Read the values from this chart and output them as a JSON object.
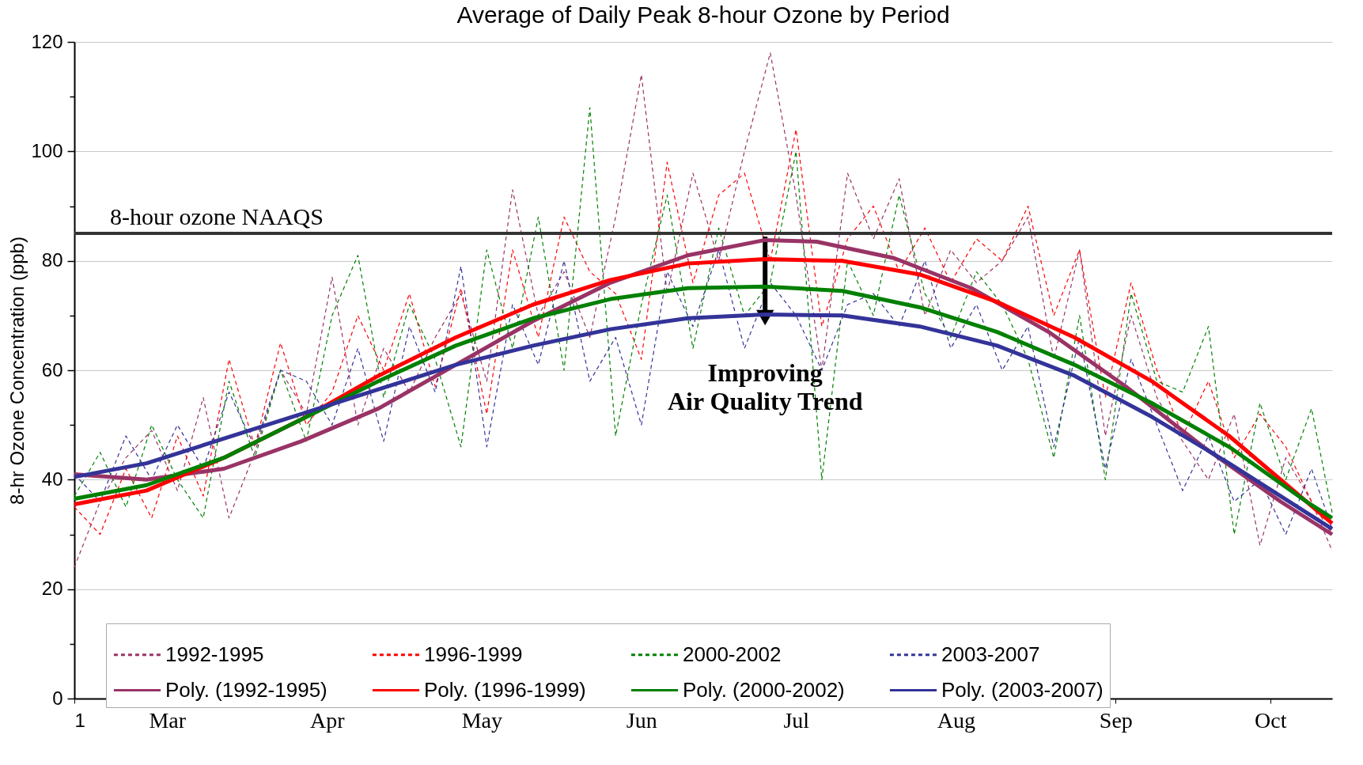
{
  "chart_data": {
    "type": "line",
    "title": "Average of Daily Peak 8-hour Ozone by Period",
    "ylabel": "8-hr Ozone Concentration (ppb)",
    "x": [
      "--02-25",
      "--03-02",
      "--03-07",
      "--03-12",
      "--03-17",
      "--03-22",
      "--03-27",
      "--04-01",
      "--04-06",
      "--04-11",
      "--04-16",
      "--04-21",
      "--04-26",
      "--05-01",
      "--05-06",
      "--05-11",
      "--05-16",
      "--05-21",
      "--05-26",
      "--05-31",
      "--06-05",
      "--06-10",
      "--06-15",
      "--06-20",
      "--06-25",
      "--06-30",
      "--07-05",
      "--07-10",
      "--07-15",
      "--07-20",
      "--07-25",
      "--07-30",
      "--08-04",
      "--08-09",
      "--08-14",
      "--08-19",
      "--08-24",
      "--08-29",
      "--09-03",
      "--09-08",
      "--09-13",
      "--09-18",
      "--09-23",
      "--09-28",
      "--10-03",
      "--10-08",
      "--10-13",
      "--10-18",
      "--10-23",
      "--10-27"
    ],
    "series": [
      {
        "name": "1992-1995",
        "color": "#993366",
        "line_style": "dashed",
        "values": [
          24,
          36,
          44,
          49,
          38,
          55,
          33,
          45,
          60,
          52,
          77,
          50,
          64,
          56,
          66,
          74,
          58,
          93,
          70,
          78,
          66,
          88,
          114,
          74,
          96,
          80,
          100,
          118,
          92,
          60,
          96,
          84,
          95,
          70,
          82,
          76,
          80,
          88,
          62,
          82,
          48,
          70,
          55,
          47,
          40,
          52,
          28,
          44,
          36,
          27
        ]
      },
      {
        "name": "1996-1999",
        "color": "#ff0000",
        "line_style": "dashed",
        "values": [
          35,
          30,
          42,
          33,
          48,
          37,
          62,
          46,
          65,
          50,
          56,
          70,
          60,
          74,
          57,
          75,
          52,
          82,
          66,
          88,
          78,
          74,
          62,
          98,
          76,
          92,
          96,
          80,
          104,
          68,
          84,
          90,
          78,
          86,
          76,
          84,
          80,
          90,
          70,
          82,
          55,
          76,
          60,
          48,
          58,
          44,
          52,
          46,
          36,
          30
        ]
      },
      {
        "name": "2000-2002",
        "color": "#008000",
        "line_style": "dashed",
        "values": [
          37,
          45,
          35,
          50,
          40,
          33,
          58,
          44,
          60,
          47,
          70,
          81,
          55,
          72,
          62,
          46,
          82,
          64,
          88,
          60,
          108,
          48,
          72,
          92,
          64,
          86,
          70,
          76,
          100,
          40,
          80,
          70,
          92,
          74,
          66,
          78,
          72,
          62,
          44,
          70,
          40,
          74,
          58,
          56,
          68,
          30,
          54,
          40,
          53,
          34
        ]
      },
      {
        "name": "2003-2007",
        "color": "#333399",
        "line_style": "dashed",
        "values": [
          41,
          36,
          48,
          40,
          50,
          42,
          56,
          46,
          60,
          58,
          50,
          64,
          47,
          68,
          56,
          79,
          46,
          72,
          61,
          80,
          58,
          66,
          50,
          78,
          68,
          82,
          64,
          76,
          70,
          60,
          72,
          74,
          68,
          80,
          64,
          72,
          60,
          68,
          46,
          66,
          42,
          62,
          50,
          38,
          48,
          36,
          40,
          30,
          42,
          31
        ]
      },
      {
        "name": "Poly. (1992-1995)",
        "color": "#993366",
        "line_style": "solid",
        "x": [
          "--02-25",
          "--03-11",
          "--03-26",
          "--04-10",
          "--04-25",
          "--05-10",
          "--05-25",
          "--06-09",
          "--06-24",
          "--07-09",
          "--07-19",
          "--08-03",
          "--08-18",
          "--09-02",
          "--09-17",
          "--10-02",
          "--10-17",
          "--10-27"
        ],
        "values": [
          41,
          40,
          42,
          47,
          53,
          61,
          69,
          76,
          81,
          83.8,
          83.5,
          80.5,
          75,
          67,
          57,
          46,
          36,
          30
        ]
      },
      {
        "name": "Poly. (1996-1999)",
        "color": "#ff0000",
        "line_style": "solid",
        "x": [
          "--02-25",
          "--03-11",
          "--03-26",
          "--04-10",
          "--04-25",
          "--05-10",
          "--05-25",
          "--06-09",
          "--06-24",
          "--07-09",
          "--07-24",
          "--08-08",
          "--08-23",
          "--09-07",
          "--09-22",
          "--10-07",
          "--10-22",
          "--10-27"
        ],
        "values": [
          35.5,
          38,
          44,
          51,
          59,
          66,
          72,
          76.5,
          79.5,
          80.3,
          80,
          77.5,
          72.5,
          66,
          58,
          48,
          36,
          32
        ]
      },
      {
        "name": "Poly. (2000-2002)",
        "color": "#008000",
        "line_style": "solid",
        "x": [
          "--02-25",
          "--03-11",
          "--03-26",
          "--04-10",
          "--04-25",
          "--05-10",
          "--05-25",
          "--06-09",
          "--06-24",
          "--07-09",
          "--07-24",
          "--08-08",
          "--08-23",
          "--09-07",
          "--09-22",
          "--10-07",
          "--10-22",
          "--10-27"
        ],
        "values": [
          36.5,
          39,
          44,
          51,
          58,
          64.5,
          69.5,
          73,
          75,
          75.3,
          74.5,
          71.5,
          67,
          61,
          54,
          46,
          36,
          33
        ]
      },
      {
        "name": "Poly. (2003-2007)",
        "color": "#333399",
        "line_style": "solid",
        "x": [
          "--02-25",
          "--03-11",
          "--03-26",
          "--04-10",
          "--04-25",
          "--05-10",
          "--05-25",
          "--06-09",
          "--06-24",
          "--07-09",
          "--07-24",
          "--08-08",
          "--08-23",
          "--09-07",
          "--09-22",
          "--10-07",
          "--10-22",
          "--10-27"
        ],
        "values": [
          40.5,
          43,
          47.5,
          52,
          56.5,
          61,
          64.5,
          67.5,
          69.5,
          70.2,
          70,
          68,
          64.5,
          59,
          51.5,
          43,
          34,
          31
        ]
      }
    ],
    "xlim": [
      "--02-25",
      "--10-27"
    ],
    "xticks": [
      {
        "value": "--02-25",
        "label": "1"
      },
      {
        "value": "--03-15",
        "label": "Mar"
      },
      {
        "value": "--04-15",
        "label": "Apr"
      },
      {
        "value": "--05-15",
        "label": "May"
      },
      {
        "value": "--06-15",
        "label": "Jun"
      },
      {
        "value": "--07-15",
        "label": "Jul"
      },
      {
        "value": "--08-15",
        "label": "Aug"
      },
      {
        "value": "--09-15",
        "label": "Sep"
      },
      {
        "value": "--10-15",
        "label": "Oct"
      }
    ],
    "ylim": [
      0,
      120
    ],
    "yticks": [
      0,
      {
        "value": 10,
        "label": null
      },
      20,
      {
        "value": 30,
        "label": null
      },
      40,
      {
        "value": 50,
        "label": null
      },
      60,
      {
        "value": 70,
        "label": null
      },
      80,
      {
        "value": 90,
        "label": null
      },
      100,
      {
        "value": 110,
        "label": null
      },
      120
    ],
    "ref_lines": [
      {
        "axis": "y",
        "value": 85,
        "label": "8-hour ozone NAAQS",
        "color": "#333333"
      }
    ],
    "annotations": [
      {
        "text": "Improving\nAir Quality Trend",
        "x": "--07-09",
        "y": 70.2
      }
    ],
    "grid": "y",
    "legend": "bottom",
    "marker": "none"
  }
}
